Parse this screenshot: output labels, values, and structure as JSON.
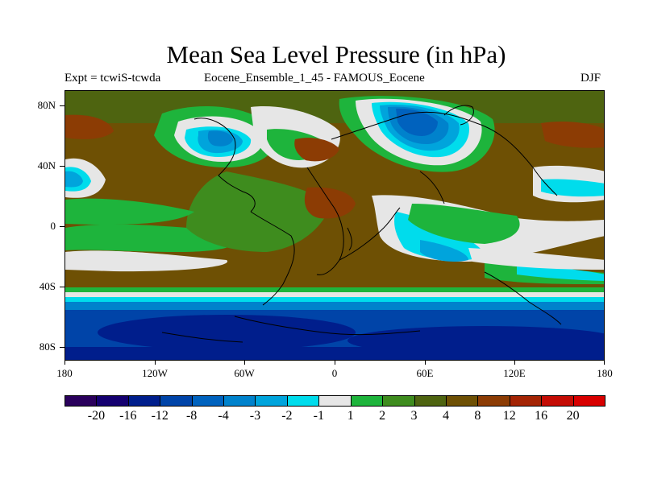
{
  "title": "Mean Sea Level Pressure (in hPa)",
  "subtitle_left": "Expt = tcwiS-tcwda",
  "subtitle_center": "Eocene_Ensemble_1_45 - FAMOUS_Eocene",
  "subtitle_right": "DJF",
  "y_axis_labels": [
    "80N",
    "40N",
    "0",
    "40S",
    "80S"
  ],
  "x_axis_labels": [
    "180",
    "120W",
    "60W",
    "0",
    "60E",
    "120E",
    "180"
  ],
  "colorbar": {
    "labels": [
      "-20",
      "-16",
      "-12",
      "-8",
      "-4",
      "-3",
      "-2",
      "-1",
      "1",
      "2",
      "3",
      "4",
      "8",
      "12",
      "16",
      "20"
    ],
    "colors": [
      "#2a005c",
      "#140070",
      "#001e8c",
      "#0044a8",
      "#0062be",
      "#0082cc",
      "#00a4dc",
      "#00dcec",
      "#e6e6e6",
      "#1eb43c",
      "#3e8c1e",
      "#4e6410",
      "#6e5004",
      "#8c3c04",
      "#a42404",
      "#c40c04",
      "#d80000"
    ]
  },
  "map_colors": {
    "ocean_deep": "#0044a8",
    "ocean_dark": "#001e8c",
    "green": "#1eb43c",
    "dark_green": "#3e8c1e",
    "olive": "#4e6410",
    "brown": "#6e5004",
    "red_brown": "#8c3c04",
    "white": "#e6e6e6",
    "cyan": "#00dcec",
    "light_blue": "#00a4dc",
    "mid_blue": "#0082cc",
    "blue": "#0062be"
  }
}
